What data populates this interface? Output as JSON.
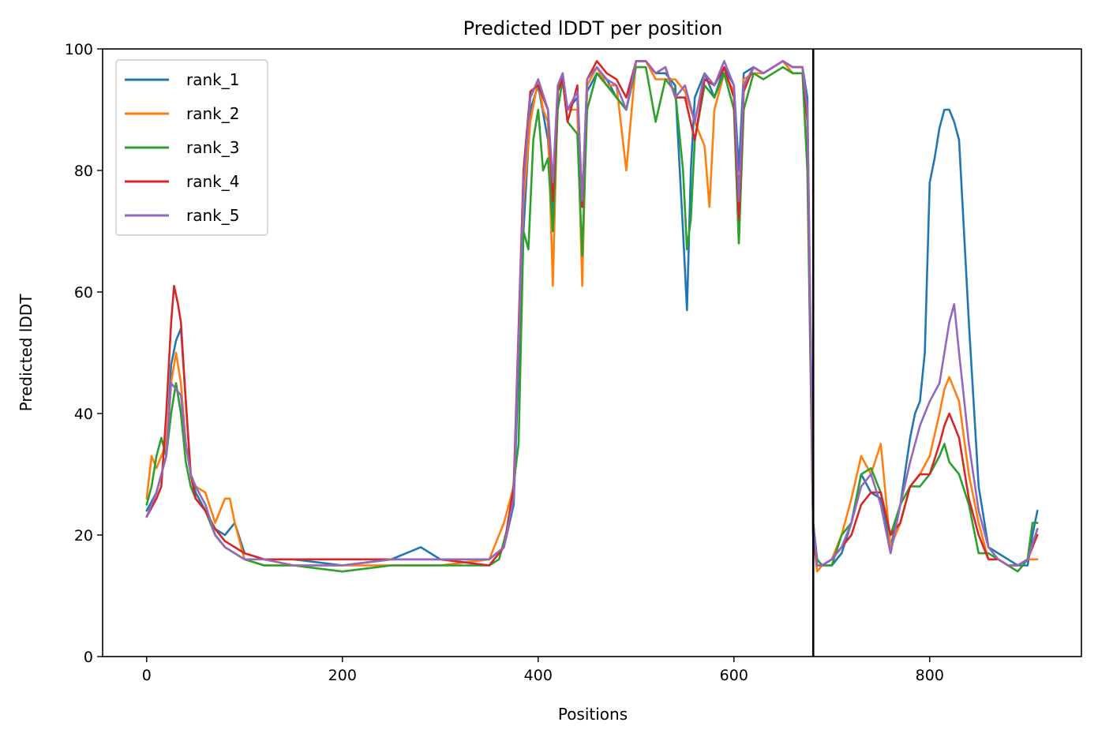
{
  "chart_data": {
    "type": "line",
    "title": "Predicted lDDT per position",
    "xlabel": "Positions",
    "ylabel": "Predicted lDDT",
    "xlim": [
      -45,
      955
    ],
    "ylim": [
      0,
      100
    ],
    "xticks": [
      0,
      200,
      400,
      600,
      800
    ],
    "yticks": [
      0,
      20,
      40,
      60,
      80,
      100
    ],
    "grid": false,
    "legend_position": "top-left",
    "vertical_line_x": 681,
    "series": [
      {
        "name": "rank_1",
        "color": "#1f77b4",
        "x": [
          0,
          10,
          20,
          25,
          30,
          35,
          40,
          45,
          50,
          60,
          70,
          80,
          90,
          100,
          120,
          150,
          200,
          250,
          280,
          300,
          350,
          365,
          375,
          385,
          392,
          400,
          410,
          415,
          420,
          425,
          430,
          440,
          445,
          450,
          460,
          470,
          480,
          490,
          500,
          510,
          520,
          530,
          540,
          548,
          552,
          556,
          560,
          570,
          580,
          590,
          600,
          605,
          610,
          620,
          630,
          640,
          650,
          660,
          670,
          675,
          681,
          685,
          690,
          700,
          710,
          720,
          730,
          740,
          750,
          760,
          770,
          780,
          785,
          790,
          795,
          800,
          805,
          810,
          815,
          820,
          825,
          830,
          835,
          840,
          850,
          860,
          870,
          880,
          890,
          900,
          905,
          910
        ],
        "y": [
          24,
          27,
          33,
          48,
          52,
          54,
          42,
          30,
          27,
          24,
          21,
          20,
          22,
          17,
          16,
          16,
          15,
          16,
          18,
          16,
          16,
          18,
          25,
          70,
          90,
          94,
          85,
          73,
          93,
          96,
          90,
          92,
          74,
          93,
          96,
          95,
          92,
          90,
          98,
          98,
          96,
          96,
          94,
          70,
          57,
          80,
          92,
          96,
          92,
          97,
          94,
          80,
          96,
          97,
          96,
          97,
          98,
          97,
          97,
          92,
          22,
          16,
          15,
          15,
          17,
          22,
          30,
          27,
          26,
          18,
          25,
          36,
          40,
          42,
          50,
          78,
          82,
          87,
          90,
          90,
          88,
          85,
          70,
          55,
          28,
          18,
          17,
          16,
          15,
          15,
          20,
          24
        ]
      },
      {
        "name": "rank_2",
        "color": "#ff7f0e",
        "x": [
          0,
          5,
          10,
          20,
          25,
          30,
          35,
          40,
          45,
          50,
          60,
          70,
          80,
          85,
          90,
          95,
          100,
          120,
          150,
          200,
          250,
          300,
          350,
          365,
          375,
          385,
          392,
          400,
          405,
          410,
          415,
          420,
          425,
          430,
          440,
          445,
          450,
          460,
          470,
          480,
          490,
          500,
          510,
          520,
          530,
          540,
          550,
          560,
          570,
          575,
          580,
          590,
          600,
          605,
          610,
          620,
          630,
          640,
          650,
          660,
          670,
          675,
          681,
          685,
          690,
          700,
          710,
          720,
          730,
          740,
          750,
          760,
          770,
          780,
          790,
          800,
          810,
          815,
          820,
          825,
          830,
          840,
          850,
          860,
          870,
          880,
          890,
          900,
          910
        ],
        "y": [
          26,
          33,
          31,
          35,
          45,
          50,
          45,
          35,
          30,
          28,
          27,
          22,
          26,
          26,
          22,
          19,
          16,
          15,
          15,
          15,
          15,
          15,
          16,
          22,
          28,
          75,
          88,
          95,
          90,
          88,
          61,
          93,
          95,
          90,
          90,
          61,
          94,
          97,
          94,
          94,
          80,
          98,
          98,
          95,
          95,
          95,
          93,
          88,
          84,
          74,
          90,
          96,
          93,
          68,
          95,
          96,
          96,
          97,
          98,
          96,
          96,
          90,
          20,
          14,
          15,
          16,
          20,
          26,
          33,
          30,
          35,
          18,
          22,
          28,
          30,
          33,
          40,
          44,
          46,
          44,
          42,
          30,
          22,
          16,
          16,
          15,
          15,
          16,
          16
        ]
      },
      {
        "name": "rank_3",
        "color": "#2ca02c",
        "x": [
          0,
          5,
          10,
          15,
          20,
          25,
          30,
          35,
          40,
          45,
          50,
          60,
          70,
          80,
          90,
          100,
          120,
          150,
          200,
          250,
          300,
          350,
          360,
          370,
          380,
          385,
          390,
          395,
          400,
          405,
          410,
          415,
          420,
          425,
          430,
          440,
          445,
          450,
          460,
          470,
          480,
          490,
          500,
          510,
          520,
          530,
          540,
          548,
          552,
          556,
          560,
          570,
          580,
          590,
          600,
          605,
          610,
          620,
          630,
          640,
          650,
          660,
          670,
          675,
          681,
          685,
          690,
          700,
          710,
          720,
          730,
          740,
          750,
          760,
          770,
          780,
          790,
          800,
          810,
          815,
          820,
          830,
          840,
          850,
          860,
          870,
          880,
          890,
          900,
          905,
          910
        ],
        "y": [
          25,
          28,
          33,
          36,
          33,
          40,
          45,
          40,
          32,
          28,
          26,
          24,
          20,
          18,
          17,
          16,
          15,
          15,
          14,
          15,
          15,
          15,
          16,
          22,
          35,
          70,
          67,
          85,
          90,
          80,
          82,
          70,
          90,
          95,
          88,
          86,
          66,
          90,
          96,
          94,
          92,
          90,
          97,
          97,
          88,
          95,
          93,
          80,
          67,
          72,
          85,
          94,
          92,
          96,
          90,
          68,
          90,
          96,
          95,
          96,
          97,
          96,
          96,
          80,
          20,
          16,
          15,
          15,
          20,
          22,
          30,
          31,
          27,
          20,
          25,
          28,
          28,
          30,
          33,
          35,
          32,
          30,
          25,
          17,
          17,
          16,
          15,
          14,
          16,
          22,
          22
        ]
      },
      {
        "name": "rank_4",
        "color": "#d62728",
        "x": [
          0,
          10,
          15,
          20,
          25,
          28,
          32,
          35,
          40,
          45,
          50,
          60,
          70,
          80,
          90,
          100,
          120,
          150,
          200,
          250,
          300,
          350,
          365,
          375,
          385,
          392,
          400,
          410,
          415,
          420,
          425,
          430,
          440,
          445,
          450,
          460,
          470,
          480,
          490,
          500,
          510,
          520,
          530,
          540,
          550,
          560,
          570,
          580,
          590,
          600,
          605,
          610,
          620,
          630,
          640,
          650,
          660,
          670,
          675,
          681,
          685,
          690,
          700,
          710,
          720,
          730,
          740,
          750,
          760,
          770,
          780,
          790,
          800,
          810,
          815,
          820,
          825,
          830,
          840,
          850,
          860,
          870,
          880,
          890,
          900,
          910
        ],
        "y": [
          23,
          26,
          28,
          40,
          55,
          61,
          58,
          55,
          42,
          30,
          26,
          24,
          21,
          19,
          18,
          17,
          16,
          16,
          16,
          16,
          16,
          15,
          18,
          28,
          80,
          93,
          94,
          90,
          75,
          93,
          95,
          88,
          94,
          74,
          95,
          98,
          96,
          95,
          92,
          98,
          98,
          96,
          97,
          92,
          92,
          85,
          95,
          94,
          97,
          92,
          72,
          93,
          97,
          96,
          97,
          98,
          97,
          97,
          88,
          20,
          15,
          15,
          16,
          18,
          20,
          25,
          27,
          27,
          20,
          22,
          28,
          30,
          30,
          35,
          38,
          40,
          38,
          36,
          26,
          20,
          16,
          16,
          15,
          15,
          16,
          20
        ]
      },
      {
        "name": "rank_5",
        "color": "#9467bd",
        "x": [
          0,
          10,
          20,
          25,
          30,
          35,
          40,
          45,
          50,
          60,
          70,
          80,
          90,
          100,
          120,
          150,
          200,
          250,
          300,
          350,
          365,
          375,
          385,
          392,
          400,
          410,
          415,
          420,
          425,
          430,
          440,
          445,
          450,
          460,
          470,
          480,
          490,
          500,
          510,
          520,
          530,
          540,
          550,
          560,
          570,
          580,
          590,
          600,
          605,
          610,
          620,
          630,
          640,
          650,
          660,
          670,
          675,
          681,
          685,
          690,
          700,
          710,
          720,
          730,
          740,
          750,
          760,
          770,
          780,
          790,
          800,
          810,
          815,
          820,
          825,
          830,
          840,
          850,
          860,
          870,
          880,
          890,
          900,
          910
        ],
        "y": [
          23,
          27,
          33,
          45,
          44,
          43,
          35,
          30,
          28,
          25,
          20,
          18,
          17,
          16,
          16,
          15,
          15,
          16,
          16,
          16,
          18,
          26,
          78,
          92,
          95,
          90,
          78,
          94,
          96,
          90,
          93,
          75,
          95,
          97,
          95,
          94,
          90,
          98,
          98,
          96,
          97,
          92,
          94,
          88,
          96,
          94,
          98,
          94,
          75,
          94,
          97,
          96,
          97,
          98,
          97,
          97,
          90,
          22,
          15,
          15,
          16,
          18,
          22,
          28,
          30,
          25,
          17,
          25,
          32,
          38,
          42,
          45,
          50,
          55,
          58,
          50,
          35,
          24,
          18,
          16,
          15,
          15,
          16,
          21
        ]
      }
    ]
  }
}
